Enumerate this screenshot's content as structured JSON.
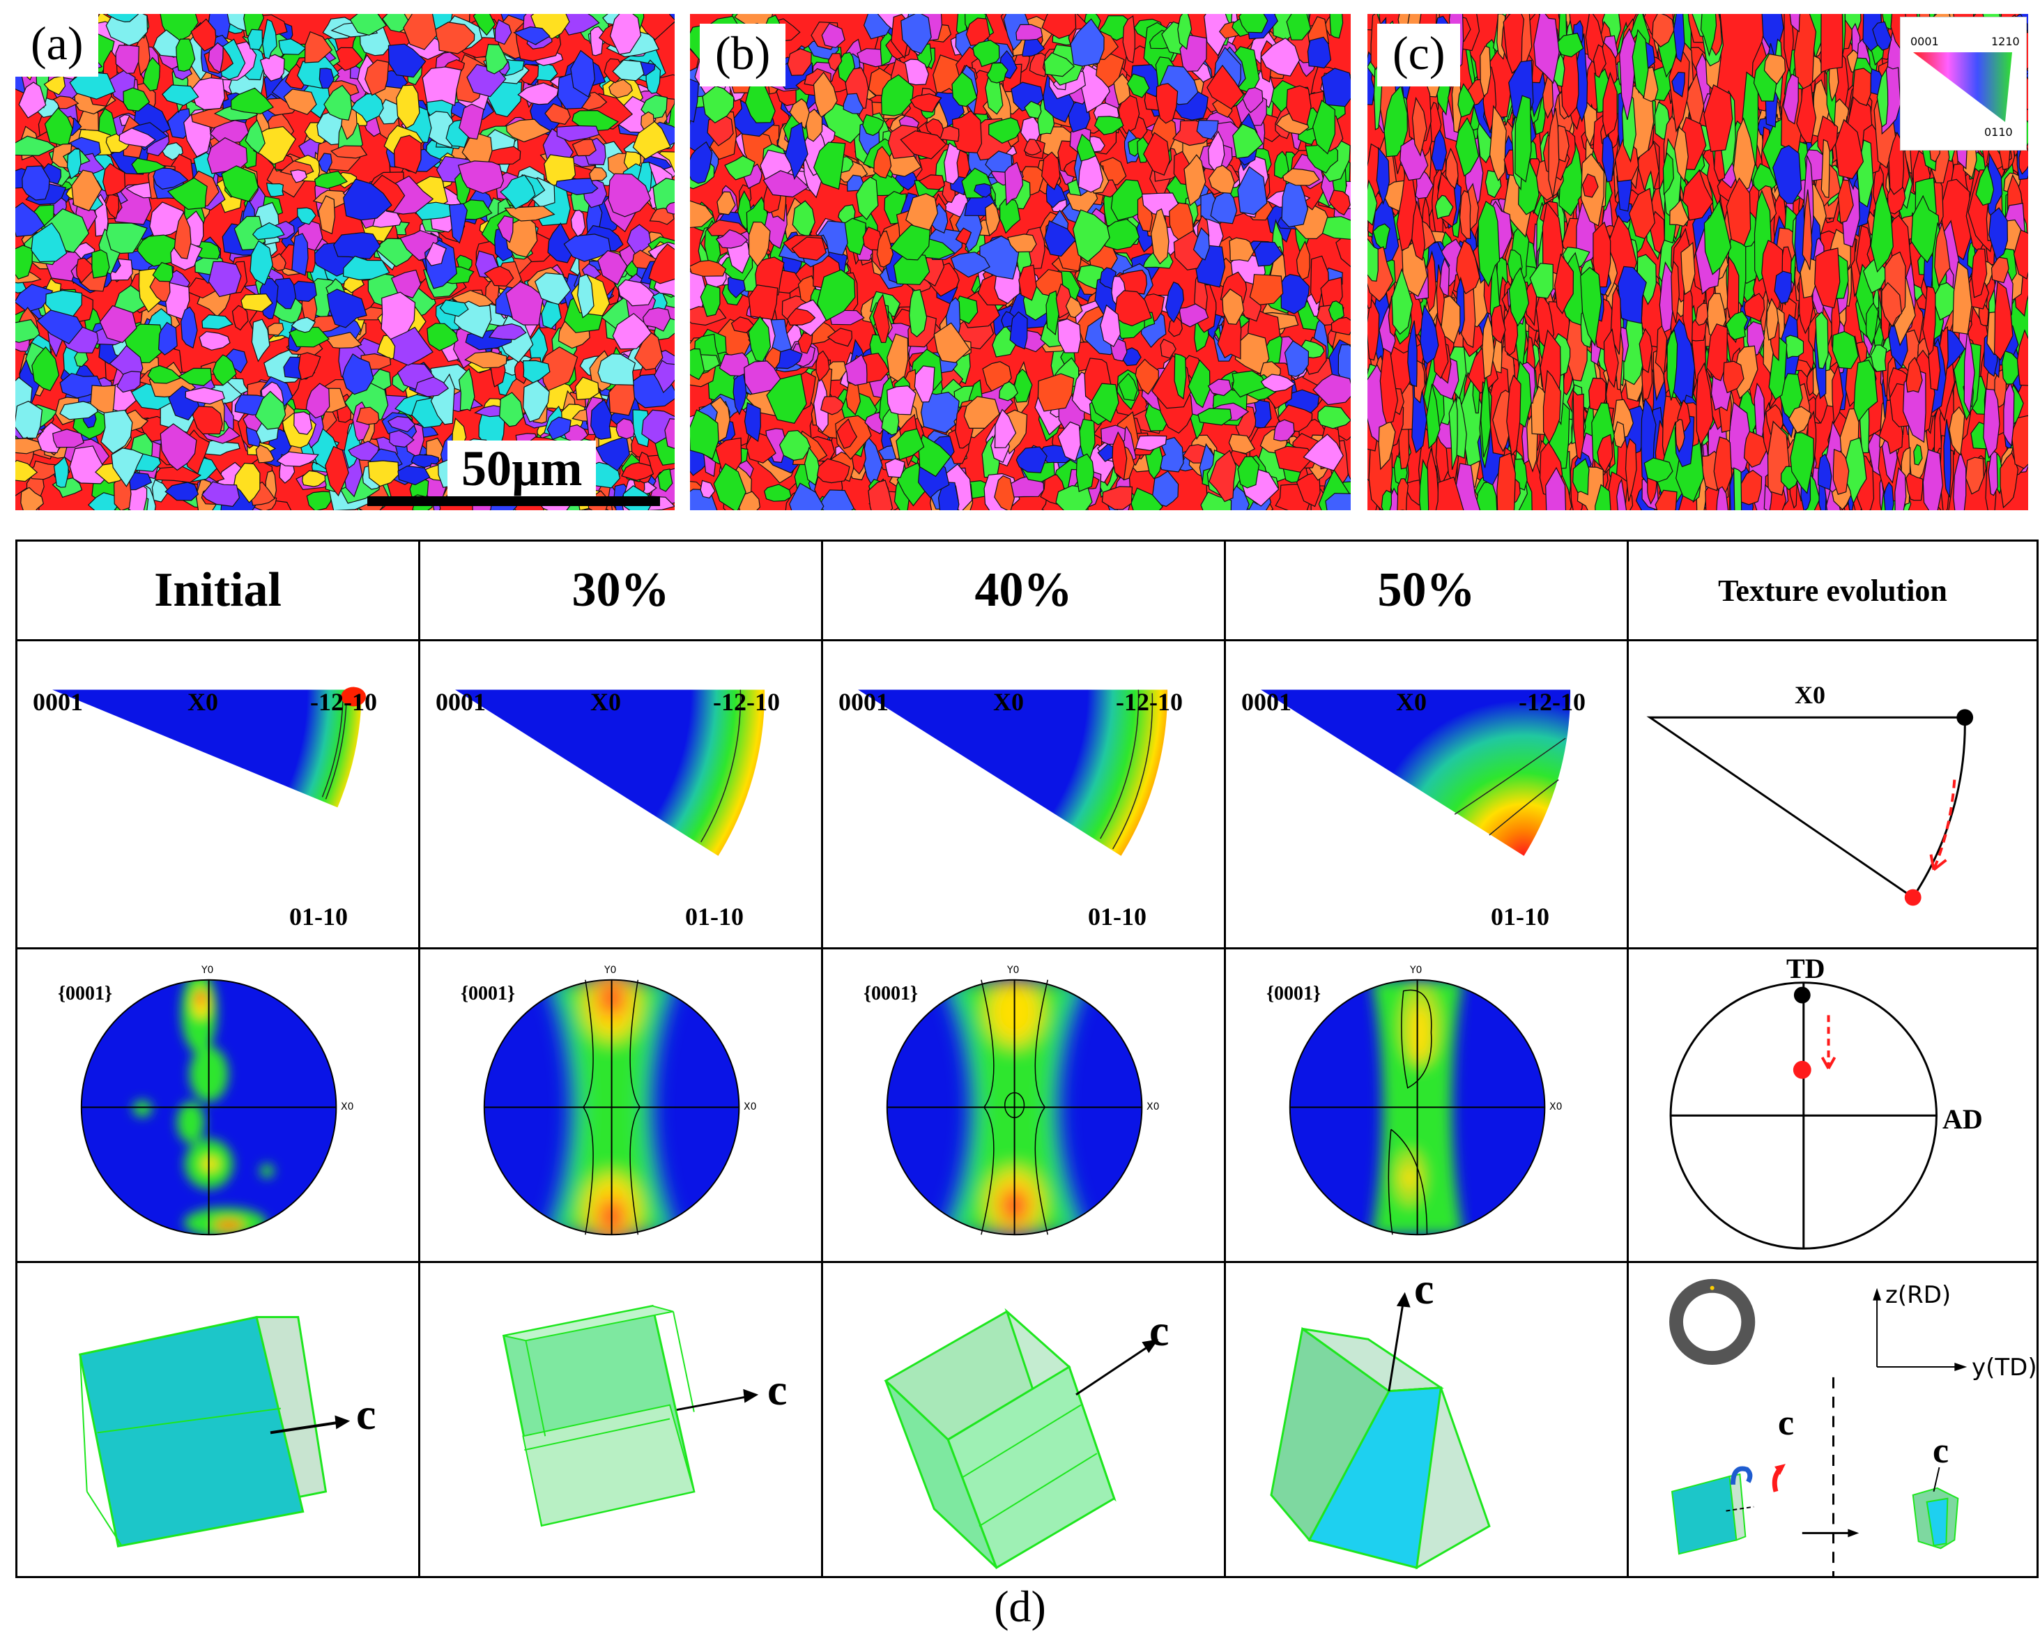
{
  "maps": {
    "a": {
      "label": "(a)",
      "scalebar": "50µm"
    },
    "b": {
      "label": "(b)"
    },
    "c": {
      "label": "(c)",
      "legend": {
        "top_left": "0001",
        "top_right": "1210",
        "bottom": "0110"
      }
    }
  },
  "table": {
    "headers": [
      "Initial",
      "30%",
      "40%",
      "50%",
      "Texture evolution"
    ],
    "ipf": {
      "left": "0001",
      "mid": "X0",
      "right": "-12-10",
      "bottom": "01-10"
    },
    "pf": {
      "label": "{0001}",
      "y_axis": "Y0",
      "x_axis": "X0"
    },
    "evolution": {
      "ipf_label": "X0",
      "td": "TD",
      "ad": "AD",
      "z_label": "z(RD)",
      "y_label": "y(TD)",
      "c": "c"
    },
    "c_axis": "c"
  },
  "caption": "(d)",
  "colors": {
    "blue": "#0a14e6",
    "green": "#1ee61e",
    "red": "#ff1a1a",
    "cyan": "#1cc6c9",
    "light_green": "#9df0b0"
  }
}
